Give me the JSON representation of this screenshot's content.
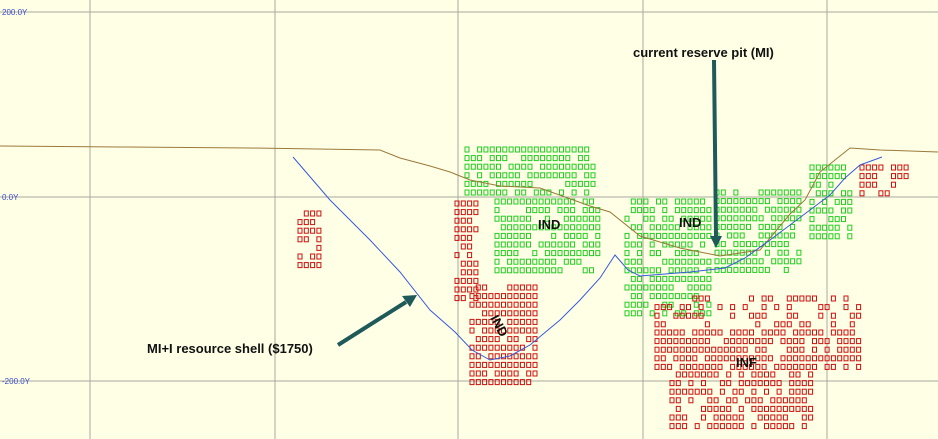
{
  "axis_labels": [
    "200.0Y",
    "0.0Y",
    "-200.0Y"
  ],
  "annotations": {
    "reserve_pit": "current reserve pit (MI)",
    "resource_shell": "MI+I resource shell ($1750)"
  },
  "zone_labels": [
    "IND",
    "IND",
    "INF",
    "IND"
  ]
}
